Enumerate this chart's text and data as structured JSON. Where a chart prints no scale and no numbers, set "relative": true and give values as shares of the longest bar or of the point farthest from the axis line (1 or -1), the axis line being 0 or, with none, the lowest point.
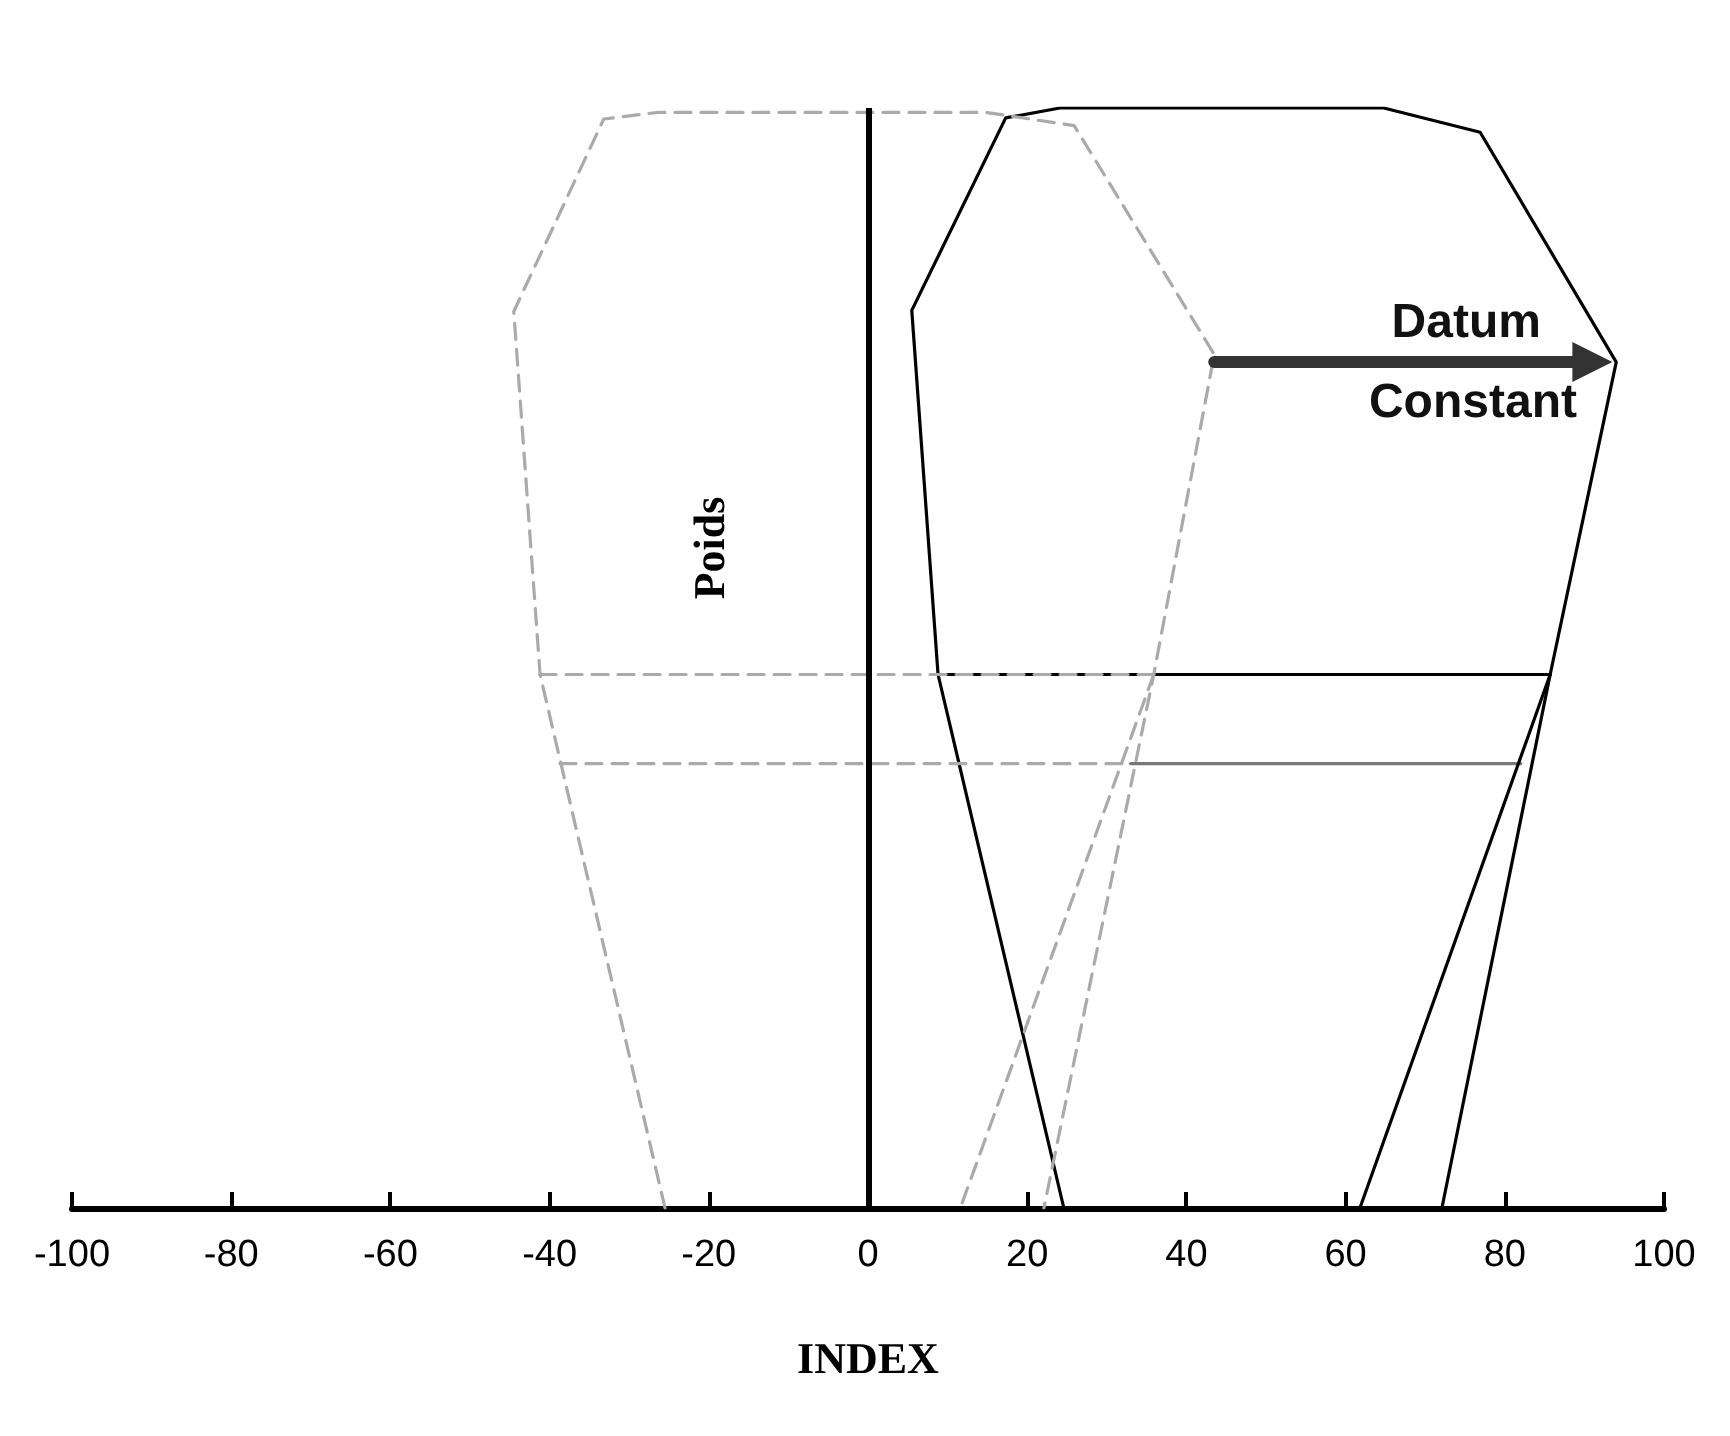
{
  "chart_data": {
    "type": "line",
    "relative": true,
    "xlabel": "INDEX",
    "ylabel": "Poids",
    "xlim": [
      -100,
      100
    ],
    "xticks": [
      -100,
      -80,
      -60,
      -40,
      -20,
      0,
      20,
      40,
      60,
      80,
      100
    ],
    "tick_labels": "x",
    "marker": "none",
    "ref_lines": [
      {
        "axis": "x",
        "value": 0,
        "color": "#000000"
      }
    ],
    "annotations": [
      {
        "text": "Datum Constant",
        "x": 76,
        "y": 0.769
      }
    ],
    "series": [
      {
        "color": "#000000",
        "line_style": "solid",
        "x": [
          24.6,
          8.8,
          5.5,
          17.3,
          24.1,
          64.8,
          76.9,
          94,
          85.7,
          72.1
        ],
        "values": [
          0,
          0.485,
          0.816,
          0.991,
          1,
          1,
          0.978,
          0.769,
          0.485,
          0
        ]
      },
      {
        "color": "#000000",
        "line_style": "solid",
        "x": [
          8.8,
          85.7
        ],
        "values": [
          0.485,
          0.485
        ]
      },
      {
        "color": "#777777",
        "line_style": "solid",
        "x": [
          33,
          82
        ],
        "values": [
          0.404,
          0.404
        ]
      },
      {
        "color": "#000000",
        "line_style": "solid",
        "x": [
          85.7,
          61.8
        ],
        "values": [
          0.485,
          0
        ]
      },
      {
        "color": "#aaaaaa",
        "line_style": "dashed",
        "x": [
          -25.5,
          -41.2,
          -44.5,
          -33.2,
          -26.4,
          14.8,
          25.9,
          43.5,
          35.9,
          22.1
        ],
        "values": [
          0,
          0.485,
          0.815,
          0.99,
          0.996,
          0.996,
          0.984,
          0.776,
          0.485,
          0
        ]
      },
      {
        "color": "#aaaaaa",
        "line_style": "dashed",
        "x": [
          -41.2,
          35.9
        ],
        "values": [
          0.485,
          0.485
        ]
      },
      {
        "color": "#aaaaaa",
        "line_style": "dashed",
        "x": [
          -38.7,
          33
        ],
        "values": [
          0.404,
          0.404
        ]
      },
      {
        "color": "#aaaaaa",
        "line_style": "dashed",
        "x": [
          35.9,
          11.6
        ],
        "values": [
          0.485,
          0
        ]
      },
      {
        "color": "#333333",
        "line_style": "solid",
        "marker": "triangle",
        "x": [
          43.5,
          91
        ],
        "values": [
          0.769,
          0.769
        ]
      }
    ]
  }
}
